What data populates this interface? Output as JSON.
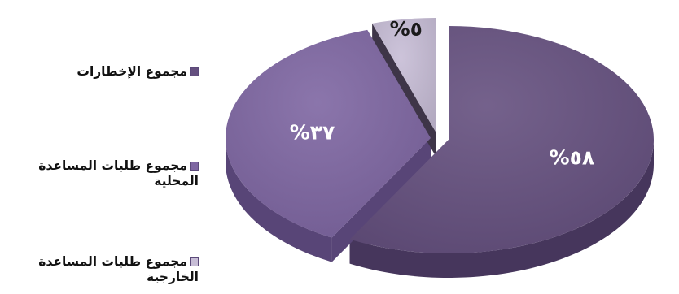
{
  "chart_data": {
    "type": "pie",
    "style": "3d-exploded",
    "slices": [
      {
        "label": "مجموع الإخطارات",
        "value": 58,
        "data_label": "%٥٨",
        "color": "#65507f",
        "side_color": "#46365c"
      },
      {
        "label": "مجموع طلبات المساعدة المحلية",
        "value": 37,
        "data_label": "%٣٧",
        "color": "#7e66a2",
        "side_color": "#584577"
      },
      {
        "label": "مجموع طلبات المساعدة الخارجية",
        "value": 5,
        "data_label": "%٥",
        "color": "#c7bdd6",
        "side_color": "#3e3548"
      }
    ],
    "legend": {
      "placement": "left"
    }
  }
}
